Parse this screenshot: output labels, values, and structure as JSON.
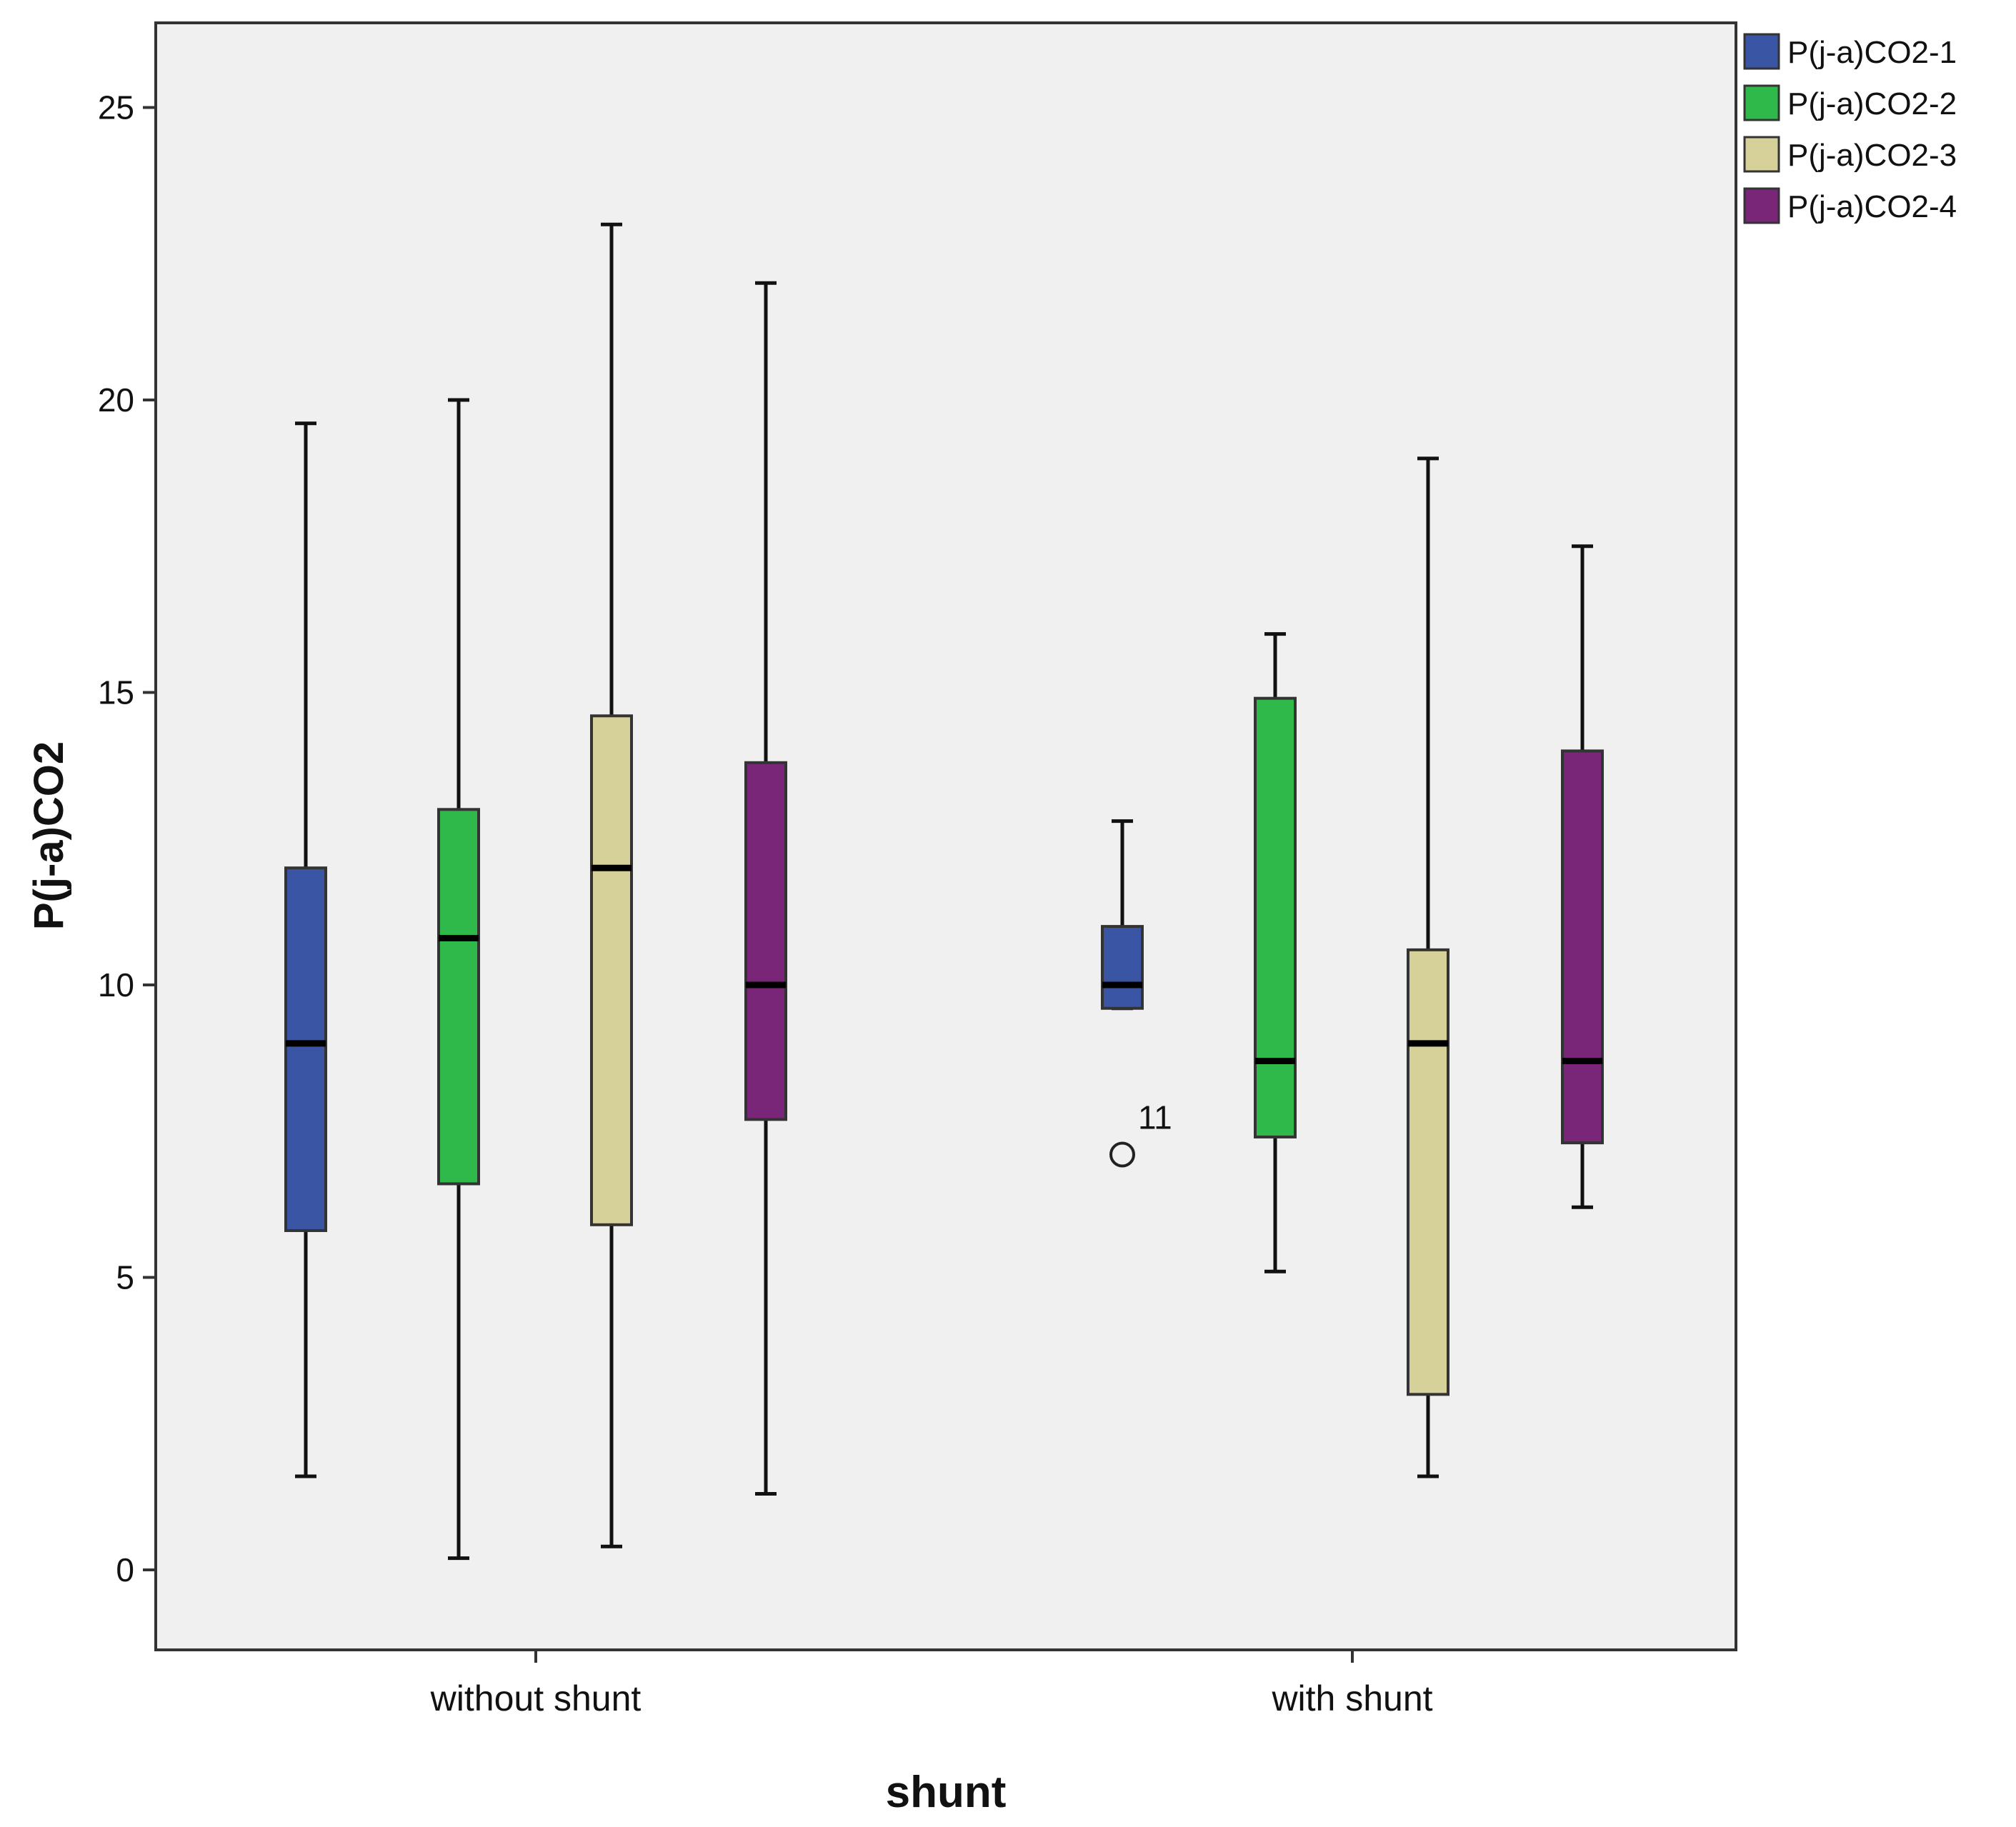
{
  "chart_data": {
    "type": "boxplot",
    "title": "",
    "xlabel": "shunt",
    "ylabel": "P(j-a)CO2",
    "ylim": [
      -1.4,
      26.4
    ],
    "yticks": [
      0,
      5,
      10,
      15,
      20,
      25
    ],
    "ytick_labels": [
      "0",
      "5",
      "10",
      "15",
      "20",
      "25"
    ],
    "grid": false,
    "legend_position": "top-right",
    "categories": [
      "without shunt",
      "with shunt"
    ],
    "series": [
      {
        "name": "P(j-a)CO2-1",
        "color": "#3a55a4",
        "boxes": [
          {
            "whisker_low": 1.6,
            "q1": 5.8,
            "median": 9.0,
            "q3": 12.0,
            "whisker_high": 19.6
          },
          {
            "whisker_low": 9.6,
            "q1": 9.6,
            "median": 10.0,
            "q3": 11.0,
            "whisker_high": 12.8
          }
        ]
      },
      {
        "name": "P(j-a)CO2-2",
        "color": "#2eb94a",
        "boxes": [
          {
            "whisker_low": 0.2,
            "q1": 6.6,
            "median": 10.8,
            "q3": 13.0,
            "whisker_high": 20.0
          },
          {
            "whisker_low": 5.1,
            "q1": 7.4,
            "median": 8.7,
            "q3": 14.9,
            "whisker_high": 16.0
          }
        ]
      },
      {
        "name": "P(j-a)CO2-3",
        "color": "#d6d099",
        "boxes": [
          {
            "whisker_low": 0.4,
            "q1": 5.9,
            "median": 12.0,
            "q3": 14.6,
            "whisker_high": 23.0
          },
          {
            "whisker_low": 1.6,
            "q1": 3.0,
            "median": 9.0,
            "q3": 10.6,
            "whisker_high": 19.0
          }
        ]
      },
      {
        "name": "P(j-a)CO2-4",
        "color": "#7a2678",
        "boxes": [
          {
            "whisker_low": 1.3,
            "q1": 7.7,
            "median": 10.0,
            "q3": 13.8,
            "whisker_high": 22.0
          },
          {
            "whisker_low": 6.2,
            "q1": 7.3,
            "median": 8.7,
            "q3": 14.0,
            "whisker_high": 17.5
          }
        ]
      }
    ],
    "outliers": [
      {
        "category": "with shunt",
        "series": "P(j-a)CO2-1",
        "value": 7.1,
        "label": "11"
      }
    ]
  }
}
